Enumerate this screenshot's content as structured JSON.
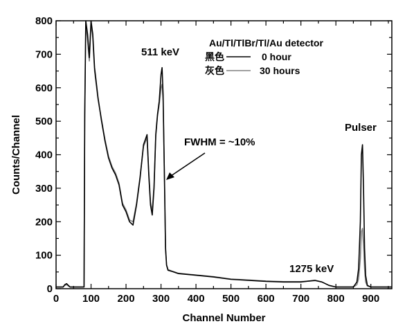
{
  "chart_data": {
    "type": "line",
    "xlabel": "Channel Number",
    "ylabel": "Counts/Channel",
    "xlim": [
      0,
      960
    ],
    "ylim": [
      0,
      800
    ],
    "xticks": [
      0,
      100,
      200,
      300,
      400,
      500,
      600,
      700,
      800,
      900
    ],
    "yticks": [
      0,
      100,
      200,
      300,
      400,
      500,
      600,
      700,
      800
    ],
    "grid": false,
    "legend": {
      "title": "Au/Tl/TlBr/Tl/Au detector",
      "placement": "top-right",
      "entries": [
        {
          "label": "黑色",
          "value": "0 hour",
          "color": "#000000"
        },
        {
          "label": "灰色",
          "value": "30 hours",
          "color": "#808080"
        }
      ]
    },
    "annotations": {
      "peak511": "511 keV",
      "fwhm": "FWHM = ~10%",
      "pulser": "Pulser",
      "peak1275": "1275 keV"
    },
    "series": [
      {
        "color": "#000000",
        "x": [
          0,
          20,
          25,
          30,
          35,
          40,
          60,
          75,
          80,
          82,
          85,
          90,
          95,
          100,
          105,
          110,
          120,
          130,
          140,
          150,
          160,
          170,
          180,
          190,
          200,
          210,
          220,
          230,
          240,
          250,
          260,
          265,
          270,
          275,
          280,
          285,
          290,
          295,
          300,
          303,
          306,
          310,
          313,
          316,
          320,
          330,
          350,
          400,
          450,
          500,
          550,
          600,
          650,
          700,
          740,
          760,
          780,
          800,
          850,
          860,
          865,
          870,
          873,
          876,
          879,
          882,
          885,
          890,
          900,
          960
        ],
        "y": [
          5,
          5,
          12,
          15,
          10,
          5,
          5,
          5,
          5,
          520,
          800,
          760,
          690,
          800,
          760,
          660,
          570,
          500,
          440,
          390,
          360,
          340,
          310,
          250,
          230,
          200,
          190,
          250,
          330,
          430,
          460,
          340,
          250,
          220,
          300,
          460,
          520,
          560,
          640,
          660,
          580,
          320,
          120,
          70,
          55,
          52,
          45,
          40,
          35,
          28,
          25,
          22,
          20,
          20,
          25,
          20,
          10,
          5,
          5,
          20,
          60,
          200,
          400,
          430,
          300,
          120,
          40,
          10,
          5,
          5
        ]
      },
      {
        "color": "#808080",
        "x": [
          0,
          20,
          25,
          30,
          35,
          40,
          60,
          75,
          80,
          82,
          85,
          90,
          95,
          100,
          105,
          110,
          120,
          130,
          140,
          150,
          160,
          170,
          180,
          190,
          200,
          210,
          220,
          230,
          240,
          250,
          260,
          265,
          270,
          275,
          280,
          285,
          290,
          295,
          300,
          303,
          306,
          310,
          313,
          316,
          320,
          330,
          350,
          400,
          450,
          500,
          550,
          600,
          650,
          700,
          740,
          760,
          780,
          800,
          850,
          860,
          865,
          870,
          873,
          876,
          879,
          882,
          885,
          890,
          900,
          960
        ],
        "y": [
          5,
          5,
          10,
          12,
          8,
          5,
          5,
          5,
          5,
          500,
          790,
          740,
          680,
          790,
          750,
          650,
          565,
          505,
          445,
          395,
          365,
          345,
          315,
          255,
          235,
          205,
          200,
          255,
          335,
          425,
          450,
          350,
          260,
          230,
          310,
          455,
          515,
          550,
          600,
          610,
          560,
          330,
          125,
          72,
          57,
          53,
          46,
          41,
          36,
          29,
          26,
          23,
          21,
          21,
          24,
          20,
          10,
          5,
          5,
          12,
          30,
          90,
          170,
          180,
          130,
          60,
          20,
          8,
          5,
          5
        ]
      }
    ]
  }
}
